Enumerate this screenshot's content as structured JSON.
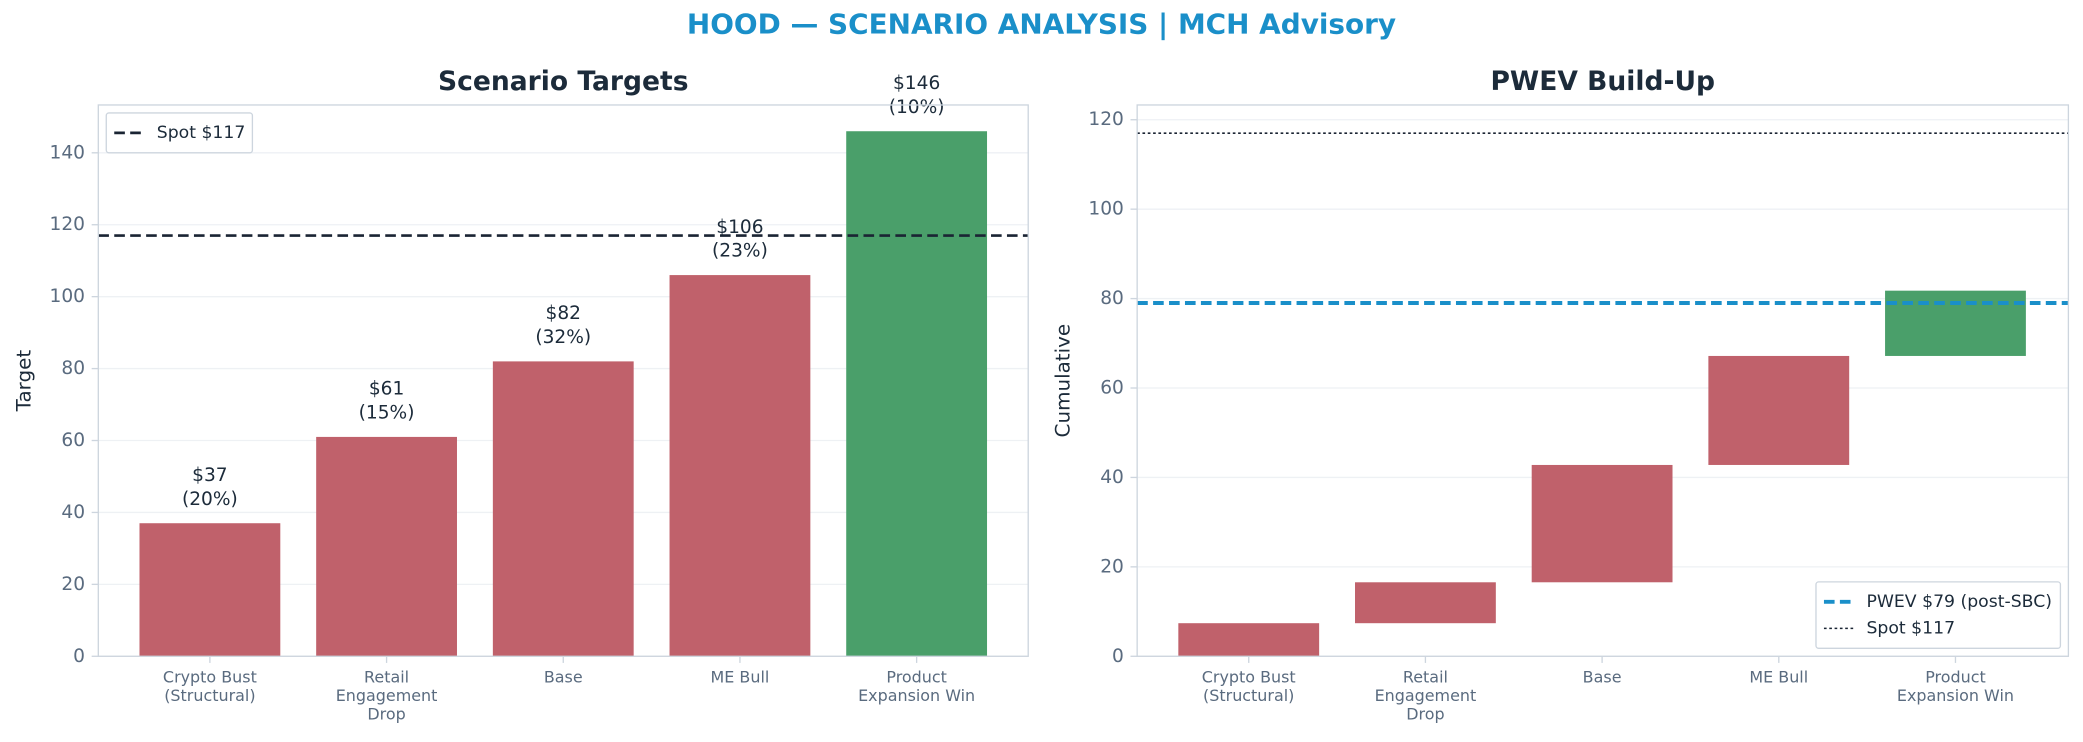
{
  "suptitle": "HOOD — SCENARIO ANALYSIS | MCH Advisory",
  "chart_data": [
    {
      "type": "bar",
      "title": "Scenario Targets",
      "ylabel": "Target",
      "categories": [
        "Crypto Bust\n(Structural)",
        "Retail\nEngagement\nDrop",
        "Base",
        "ME Bull",
        "Product\nExpansion Win"
      ],
      "values": [
        37,
        61,
        82,
        106,
        146
      ],
      "value_labels": [
        "$37",
        "$61",
        "$82",
        "$106",
        "$146"
      ],
      "probabilities": [
        20,
        15,
        32,
        23,
        10
      ],
      "probability_labels": [
        "(20%)",
        "(15%)",
        "(32%)",
        "(23%)",
        "(10%)"
      ],
      "colors": [
        "#c0616b",
        "#c0616b",
        "#c0616b",
        "#c0616b",
        "#4a9f6a"
      ],
      "ylim": [
        0,
        153.3
      ],
      "yticks": [
        0,
        20,
        40,
        60,
        80,
        100,
        120,
        140
      ],
      "grid": true,
      "reference_lines": [
        {
          "value": 117,
          "label": "Spot $117",
          "style": "dashed",
          "color": "#1a2433"
        }
      ],
      "legend": "upper left"
    },
    {
      "type": "waterfall",
      "title": "PWEV Build-Up",
      "ylabel": "Cumulative",
      "categories": [
        "Crypto Bust\n(Structural)",
        "Retail\nEngagement\nDrop",
        "Base",
        "ME Bull",
        "Product\nExpansion Win"
      ],
      "values": [
        7.4,
        9.15,
        26.24,
        24.38,
        14.6
      ],
      "colors": [
        "#c0616b",
        "#c0616b",
        "#c0616b",
        "#c0616b",
        "#4a9f6a"
      ],
      "ylim": [
        0,
        123.3
      ],
      "yticks": [
        0,
        20,
        40,
        60,
        80,
        100,
        120
      ],
      "grid": true,
      "reference_lines": [
        {
          "value": 79,
          "label": "PWEV $79 (post-SBC)",
          "style": "dashed",
          "color": "#1a8fc9"
        },
        {
          "value": 117,
          "label": "Spot $117",
          "style": "dotted",
          "color": "#1a2433"
        }
      ],
      "legend": "lower right"
    }
  ]
}
